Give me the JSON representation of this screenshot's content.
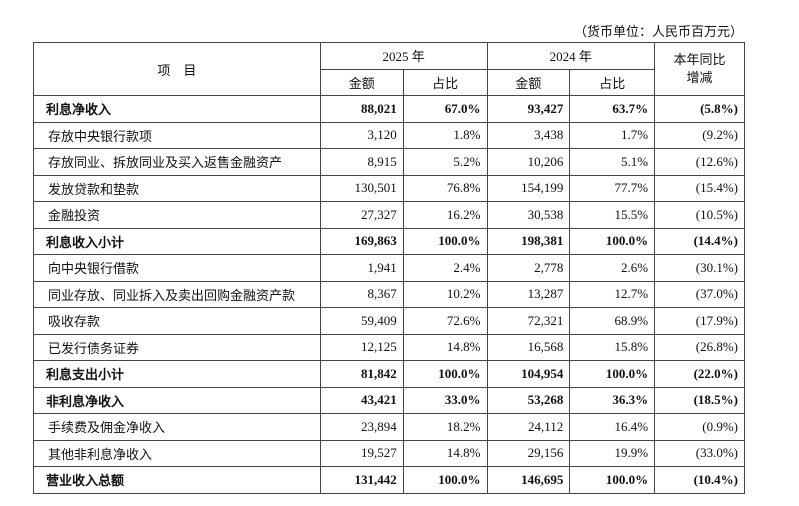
{
  "header": {
    "unit": "（货币单位：人民币百万元）",
    "item": "项　目",
    "year_a": "2025 年",
    "year_b": "2024 年",
    "amount": "金额",
    "share": "占比",
    "change_line1": "本年同比",
    "change_line2": "增减"
  },
  "table": {
    "rows": [
      {
        "label": "利息净收入",
        "bold": true,
        "cells": [
          "88,021",
          "67.0%",
          "93,427",
          "63.7%",
          "(5.8%)"
        ]
      },
      {
        "label": "存放中央银行款项",
        "bold": false,
        "cells": [
          "3,120",
          "1.8%",
          "3,438",
          "1.7%",
          "(9.2%)"
        ]
      },
      {
        "label": "存放同业、拆放同业及买入返售金融资产",
        "bold": false,
        "cells": [
          "8,915",
          "5.2%",
          "10,206",
          "5.1%",
          "(12.6%)"
        ]
      },
      {
        "label": "发放贷款和垫款",
        "bold": false,
        "cells": [
          "130,501",
          "76.8%",
          "154,199",
          "77.7%",
          "(15.4%)"
        ]
      },
      {
        "label": "金融投资",
        "bold": false,
        "cells": [
          "27,327",
          "16.2%",
          "30,538",
          "15.5%",
          "(10.5%)"
        ]
      },
      {
        "label": "利息收入小计",
        "bold": true,
        "cells": [
          "169,863",
          "100.0%",
          "198,381",
          "100.0%",
          "(14.4%)"
        ]
      },
      {
        "label": "向中央银行借款",
        "bold": false,
        "cells": [
          "1,941",
          "2.4%",
          "2,778",
          "2.6%",
          "(30.1%)"
        ]
      },
      {
        "label": "同业存放、同业拆入及卖出回购金融资产款",
        "bold": false,
        "cells": [
          "8,367",
          "10.2%",
          "13,287",
          "12.7%",
          "(37.0%)"
        ]
      },
      {
        "label": "吸收存款",
        "bold": false,
        "cells": [
          "59,409",
          "72.6%",
          "72,321",
          "68.9%",
          "(17.9%)"
        ]
      },
      {
        "label": "已发行债务证券",
        "bold": false,
        "cells": [
          "12,125",
          "14.8%",
          "16,568",
          "15.8%",
          "(26.8%)"
        ]
      },
      {
        "label": "利息支出小计",
        "bold": true,
        "cells": [
          "81,842",
          "100.0%",
          "104,954",
          "100.0%",
          "(22.0%)"
        ]
      },
      {
        "label": "非利息净收入",
        "bold": true,
        "cells": [
          "43,421",
          "33.0%",
          "53,268",
          "36.3%",
          "(18.5%)"
        ]
      },
      {
        "label": "手续费及佣金净收入",
        "bold": false,
        "cells": [
          "23,894",
          "18.2%",
          "24,112",
          "16.4%",
          "(0.9%)"
        ]
      },
      {
        "label": "其他非利息净收入",
        "bold": false,
        "cells": [
          "19,527",
          "14.8%",
          "29,156",
          "19.9%",
          "(33.0%)"
        ]
      },
      {
        "label": "营业收入总额",
        "bold": true,
        "cells": [
          "131,442",
          "100.0%",
          "146,695",
          "100.0%",
          "(10.4%)"
        ]
      }
    ]
  }
}
